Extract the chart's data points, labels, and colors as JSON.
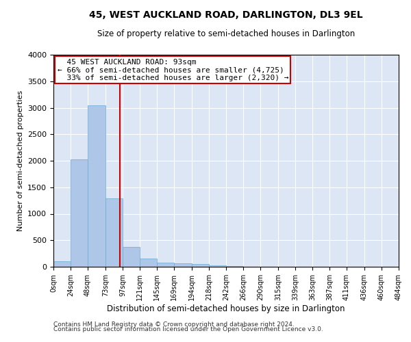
{
  "title": "45, WEST AUCKLAND ROAD, DARLINGTON, DL3 9EL",
  "subtitle": "Size of property relative to semi-detached houses in Darlington",
  "xlabel": "Distribution of semi-detached houses by size in Darlington",
  "ylabel": "Number of semi-detached properties",
  "footnote1": "Contains HM Land Registry data © Crown copyright and database right 2024.",
  "footnote2": "Contains public sector information licensed under the Open Government Licence v3.0.",
  "annotation_title": "45 WEST AUCKLAND ROAD: 93sqm",
  "annotation_line1": "← 66% of semi-detached houses are smaller (4,725)",
  "annotation_line2": "33% of semi-detached houses are larger (2,320) →",
  "bar_left_edges": [
    0,
    24,
    48,
    73,
    97,
    121,
    145,
    169,
    194,
    218,
    242,
    266,
    290,
    315,
    339,
    363,
    387,
    411,
    436,
    460
  ],
  "bar_widths": [
    24,
    24,
    25,
    24,
    24,
    24,
    24,
    25,
    24,
    24,
    24,
    24,
    25,
    24,
    24,
    24,
    24,
    25,
    24,
    24
  ],
  "bar_heights": [
    100,
    2020,
    3050,
    1290,
    380,
    160,
    80,
    60,
    50,
    20,
    10,
    5,
    5,
    2,
    2,
    1,
    1,
    0,
    0,
    0
  ],
  "bar_color": "#aec6e8",
  "bar_edge_color": "#6aaad4",
  "vline_color": "#cc0000",
  "vline_x": 93,
  "annotation_box_color": "#cc0000",
  "background_color": "#dce6f5",
  "ylim": [
    0,
    4000
  ],
  "yticks": [
    0,
    500,
    1000,
    1500,
    2000,
    2500,
    3000,
    3500,
    4000
  ],
  "xtick_labels": [
    "0sqm",
    "24sqm",
    "48sqm",
    "73sqm",
    "97sqm",
    "121sqm",
    "145sqm",
    "169sqm",
    "194sqm",
    "218sqm",
    "242sqm",
    "266sqm",
    "290sqm",
    "315sqm",
    "339sqm",
    "363sqm",
    "387sqm",
    "411sqm",
    "436sqm",
    "460sqm",
    "484sqm"
  ]
}
